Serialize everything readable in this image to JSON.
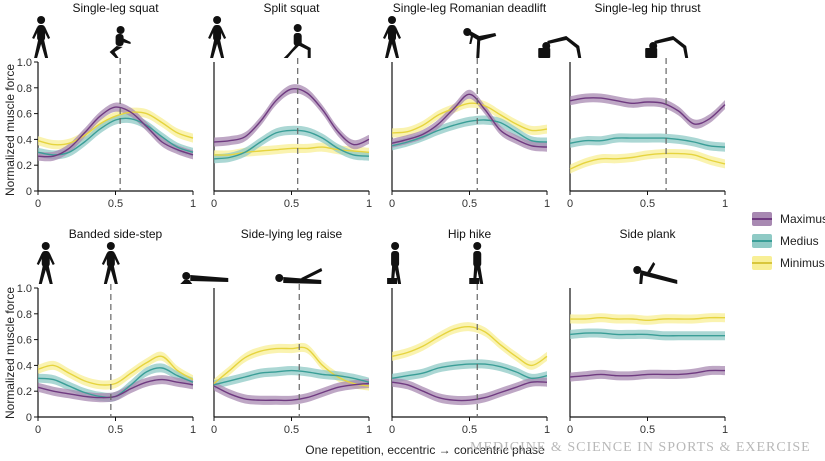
{
  "chart_data": {
    "type": "line",
    "x_axis_label": "One repetition, eccentric → concentric phase",
    "y_axis_label": "Normalized muscle force",
    "xlim": [
      0,
      1
    ],
    "ylim": [
      0,
      1
    ],
    "x_ticks": [
      "0",
      "0.5",
      "1"
    ],
    "y_ticks": [
      "0",
      "0.2",
      "0.4",
      "0.6",
      "0.8",
      "1.0"
    ],
    "legend": [
      {
        "name": "Maximus",
        "color": "#6f3a80",
        "band": "#a889b2"
      },
      {
        "name": "Medius",
        "color": "#3a9e97",
        "band": "#8fcac5"
      },
      {
        "name": "Minimus",
        "color": "#f2e25f",
        "band": "#f8ef96"
      }
    ],
    "panels": [
      {
        "title": "Single-leg squat",
        "vline": 0.53,
        "x": [
          0,
          0.1,
          0.2,
          0.3,
          0.4,
          0.5,
          0.6,
          0.7,
          0.8,
          0.9,
          1.0
        ],
        "series": [
          [
            0.27,
            0.27,
            0.33,
            0.45,
            0.58,
            0.65,
            0.61,
            0.5,
            0.38,
            0.32,
            0.28
          ],
          [
            0.3,
            0.28,
            0.3,
            0.38,
            0.48,
            0.55,
            0.56,
            0.51,
            0.42,
            0.34,
            0.3
          ],
          [
            0.39,
            0.36,
            0.37,
            0.43,
            0.52,
            0.58,
            0.61,
            0.6,
            0.53,
            0.45,
            0.41
          ]
        ]
      },
      {
        "title": "Split squat",
        "vline": 0.54,
        "x": [
          0,
          0.1,
          0.2,
          0.3,
          0.4,
          0.5,
          0.6,
          0.7,
          0.8,
          0.9,
          1.0
        ],
        "series": [
          [
            0.38,
            0.39,
            0.42,
            0.54,
            0.7,
            0.79,
            0.76,
            0.63,
            0.46,
            0.36,
            0.4
          ],
          [
            0.25,
            0.26,
            0.3,
            0.38,
            0.45,
            0.47,
            0.46,
            0.41,
            0.33,
            0.28,
            0.27
          ],
          [
            0.28,
            0.28,
            0.3,
            0.31,
            0.32,
            0.33,
            0.33,
            0.34,
            0.32,
            0.31,
            0.3
          ]
        ]
      },
      {
        "title": "Single-leg Romanian deadlift",
        "vline": 0.55,
        "x": [
          0,
          0.1,
          0.2,
          0.3,
          0.4,
          0.5,
          0.6,
          0.7,
          0.8,
          0.9,
          1.0
        ],
        "series": [
          [
            0.37,
            0.4,
            0.44,
            0.52,
            0.64,
            0.75,
            0.63,
            0.47,
            0.4,
            0.35,
            0.34
          ],
          [
            0.35,
            0.38,
            0.42,
            0.47,
            0.51,
            0.54,
            0.55,
            0.53,
            0.46,
            0.39,
            0.38
          ],
          [
            0.45,
            0.46,
            0.51,
            0.59,
            0.64,
            0.68,
            0.66,
            0.59,
            0.52,
            0.47,
            0.48
          ]
        ]
      },
      {
        "title": "Single-leg hip thrust",
        "vline": 0.62,
        "x": [
          0,
          0.1,
          0.2,
          0.3,
          0.4,
          0.5,
          0.6,
          0.7,
          0.8,
          0.9,
          1.0
        ],
        "series": [
          [
            0.7,
            0.72,
            0.72,
            0.7,
            0.68,
            0.69,
            0.68,
            0.62,
            0.52,
            0.56,
            0.67
          ],
          [
            0.37,
            0.39,
            0.39,
            0.41,
            0.41,
            0.41,
            0.41,
            0.4,
            0.38,
            0.35,
            0.34
          ],
          [
            0.17,
            0.22,
            0.25,
            0.25,
            0.26,
            0.28,
            0.29,
            0.29,
            0.28,
            0.24,
            0.21
          ]
        ]
      },
      {
        "title": "Banded side-step",
        "vline": 0.47,
        "x": [
          0,
          0.1,
          0.2,
          0.3,
          0.4,
          0.5,
          0.6,
          0.7,
          0.8,
          0.9,
          1.0
        ],
        "series": [
          [
            0.23,
            0.2,
            0.18,
            0.16,
            0.15,
            0.16,
            0.22,
            0.27,
            0.29,
            0.27,
            0.25
          ],
          [
            0.3,
            0.29,
            0.24,
            0.19,
            0.16,
            0.16,
            0.25,
            0.35,
            0.38,
            0.32,
            0.27
          ],
          [
            0.37,
            0.4,
            0.34,
            0.28,
            0.25,
            0.26,
            0.34,
            0.42,
            0.47,
            0.36,
            0.29
          ]
        ]
      },
      {
        "title": "Side-lying leg raise",
        "vline": 0.55,
        "x": [
          0,
          0.1,
          0.2,
          0.3,
          0.4,
          0.5,
          0.6,
          0.7,
          0.8,
          0.9,
          1.0
        ],
        "series": [
          [
            0.24,
            0.18,
            0.14,
            0.13,
            0.13,
            0.13,
            0.15,
            0.19,
            0.23,
            0.25,
            0.26
          ],
          [
            0.25,
            0.28,
            0.31,
            0.34,
            0.35,
            0.36,
            0.35,
            0.33,
            0.32,
            0.3,
            0.27
          ],
          [
            0.26,
            0.36,
            0.46,
            0.51,
            0.53,
            0.53,
            0.53,
            0.4,
            0.31,
            0.26,
            0.24
          ]
        ]
      },
      {
        "title": "Hip hike",
        "vline": 0.55,
        "x": [
          0,
          0.1,
          0.2,
          0.3,
          0.4,
          0.5,
          0.6,
          0.7,
          0.8,
          0.9,
          1.0
        ],
        "series": [
          [
            0.27,
            0.25,
            0.2,
            0.15,
            0.13,
            0.13,
            0.15,
            0.19,
            0.23,
            0.27,
            0.27
          ],
          [
            0.3,
            0.32,
            0.34,
            0.38,
            0.4,
            0.41,
            0.41,
            0.39,
            0.35,
            0.3,
            0.32
          ],
          [
            0.47,
            0.5,
            0.55,
            0.62,
            0.68,
            0.7,
            0.66,
            0.56,
            0.47,
            0.4,
            0.47
          ]
        ]
      },
      {
        "title": "Side plank",
        "vline": null,
        "x": [
          0,
          0.1,
          0.2,
          0.3,
          0.4,
          0.5,
          0.6,
          0.7,
          0.8,
          0.9,
          1.0
        ],
        "series": [
          [
            0.31,
            0.32,
            0.33,
            0.32,
            0.32,
            0.33,
            0.33,
            0.33,
            0.34,
            0.36,
            0.36
          ],
          [
            0.64,
            0.65,
            0.65,
            0.64,
            0.64,
            0.64,
            0.63,
            0.63,
            0.63,
            0.63,
            0.63
          ],
          [
            0.76,
            0.76,
            0.77,
            0.76,
            0.76,
            0.75,
            0.76,
            0.76,
            0.76,
            0.77,
            0.77
          ]
        ]
      }
    ]
  },
  "watermark": "MEDICINE & SCIENCE IN SPORTS & EXERCISE"
}
